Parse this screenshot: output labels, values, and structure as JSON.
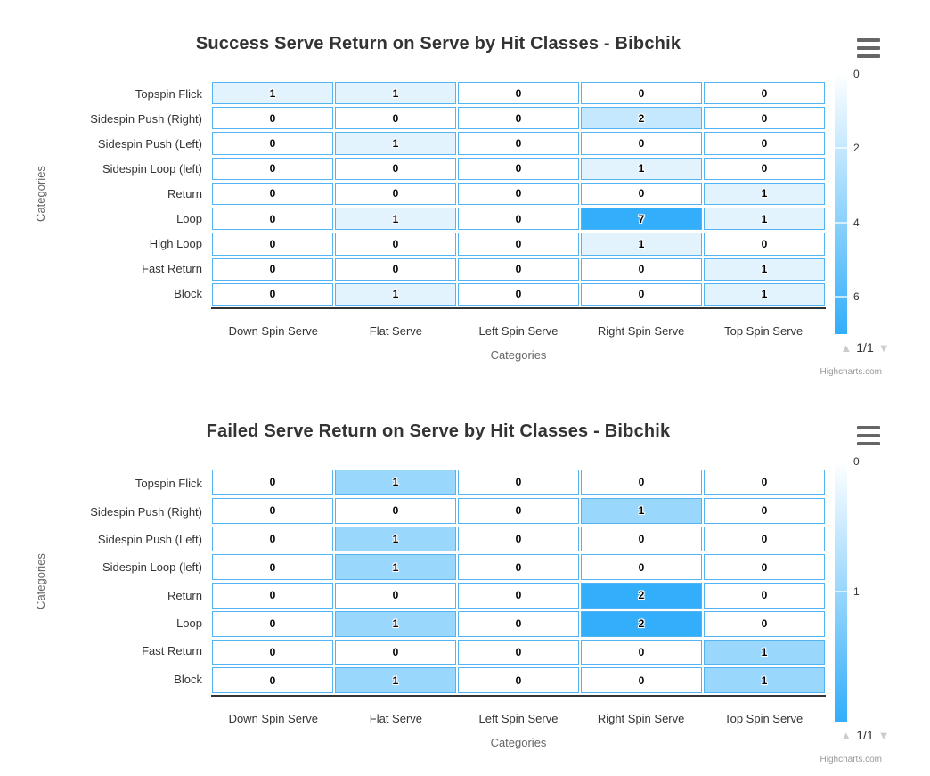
{
  "colors": {
    "cell_min": "#ffffff",
    "cell_max": "#33aefa",
    "cell_border": "#52b4f2",
    "axis_line": "#333333",
    "text_primary": "#333333",
    "text_secondary": "#666666",
    "credits_text": "#999999",
    "pagination_arrow": "#cccccc",
    "menu_icon": "#666666"
  },
  "chart_data": [
    {
      "type": "heatmap",
      "title": "Success Serve Return on Serve by Hit Classes - Bibchik",
      "xlabel": "Categories",
      "ylabel": "Categories",
      "x_categories": [
        "Down Spin Serve",
        "Flat Serve",
        "Left Spin Serve",
        "Right Spin Serve",
        "Top Spin Serve"
      ],
      "y_categories": [
        "Topspin Flick",
        "Sidespin Push (Right)",
        "Sidespin Push (Left)",
        "Sidespin Loop (left)",
        "Return",
        "Loop",
        "High Loop",
        "Fast Return",
        "Block"
      ],
      "rows": [
        [
          1,
          1,
          0,
          0,
          0
        ],
        [
          0,
          0,
          0,
          2,
          0
        ],
        [
          0,
          1,
          0,
          0,
          0
        ],
        [
          0,
          0,
          0,
          1,
          0
        ],
        [
          0,
          0,
          0,
          0,
          1
        ],
        [
          0,
          1,
          0,
          7,
          1
        ],
        [
          0,
          0,
          0,
          1,
          0
        ],
        [
          0,
          0,
          0,
          0,
          1
        ],
        [
          0,
          1,
          0,
          0,
          1
        ]
      ],
      "color_axis_ticks": [
        0,
        2,
        4,
        6
      ],
      "legend_position": "right",
      "pagination": "1/1",
      "credits": "Highcharts.com"
    },
    {
      "type": "heatmap",
      "title": "Failed Serve Return on Serve by Hit Classes - Bibchik",
      "xlabel": "Categories",
      "ylabel": "Categories",
      "x_categories": [
        "Down Spin Serve",
        "Flat Serve",
        "Left Spin Serve",
        "Right Spin Serve",
        "Top Spin Serve"
      ],
      "y_categories": [
        "Topspin Flick",
        "Sidespin Push (Right)",
        "Sidespin Push (Left)",
        "Sidespin Loop (left)",
        "Return",
        "Loop",
        "Fast Return",
        "Block"
      ],
      "rows": [
        [
          0,
          1,
          0,
          0,
          0
        ],
        [
          0,
          0,
          0,
          1,
          0
        ],
        [
          0,
          1,
          0,
          0,
          0
        ],
        [
          0,
          1,
          0,
          0,
          0
        ],
        [
          0,
          0,
          0,
          2,
          0
        ],
        [
          0,
          1,
          0,
          2,
          0
        ],
        [
          0,
          0,
          0,
          0,
          1
        ],
        [
          0,
          1,
          0,
          0,
          1
        ]
      ],
      "color_axis_ticks": [
        0,
        1
      ],
      "legend_position": "right",
      "pagination": "1/1",
      "credits": "Highcharts.com"
    }
  ]
}
